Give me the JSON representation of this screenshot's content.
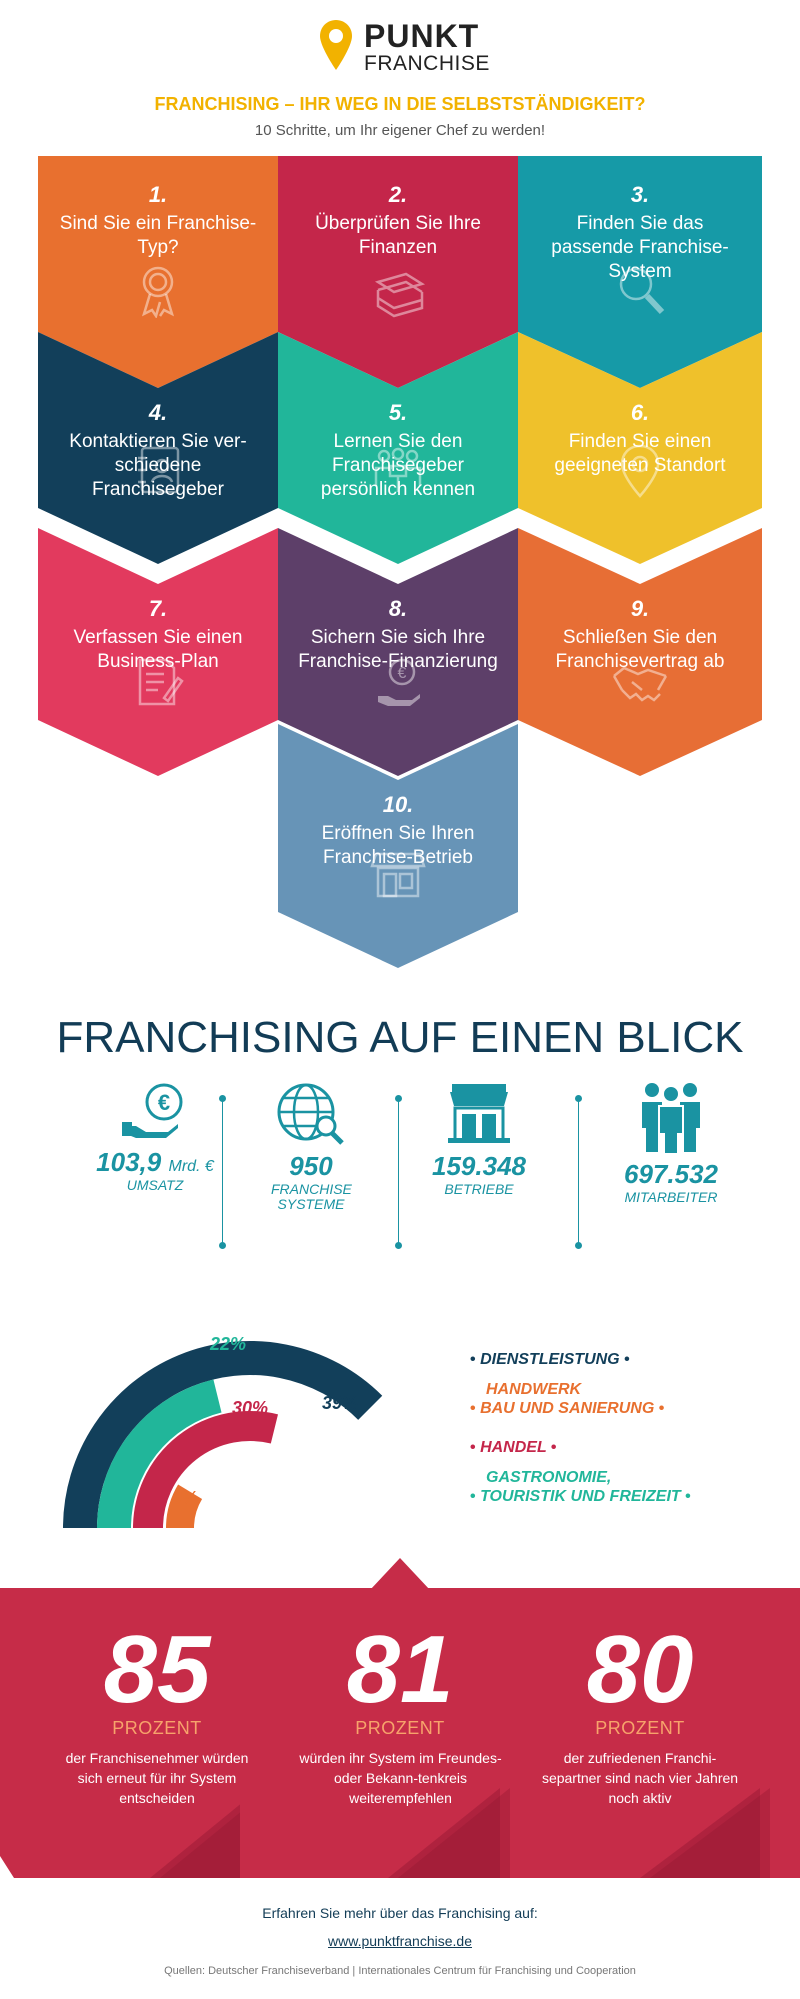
{
  "header": {
    "logo_word1": "PUNKT",
    "logo_word2": "FRANCHISE",
    "headline": "FRANCHISING – IHR WEG IN DIE SELBSTSTÄNDIGKEIT?",
    "subline": "10 Schritte, um Ihr eigener Chef zu werden!"
  },
  "steps": [
    {
      "num": "1.",
      "text": "Sind Sie ein Franchise-Typ?",
      "color": "#e8702f",
      "icon": "award-icon"
    },
    {
      "num": "2.",
      "text": "Überprüfen Sie Ihre Finanzen",
      "color": "#c4264a",
      "icon": "money-stack-icon"
    },
    {
      "num": "3.",
      "text": "Finden Sie das passende Franchise-System",
      "color": "#169aa7",
      "icon": "magnifier-icon"
    },
    {
      "num": "4.",
      "text": "Kontaktieren Sie ver-schiedene Franchisegeber",
      "color": "#123f5a",
      "icon": "address-book-icon"
    },
    {
      "num": "5.",
      "text": "Lernen Sie den Franchisegeber persönlich kennen",
      "color": "#21b69a",
      "icon": "meeting-icon"
    },
    {
      "num": "6.",
      "text": "Finden Sie einen geeigneten Standort",
      "color": "#efc12b",
      "icon": "location-pin-icon"
    },
    {
      "num": "7.",
      "text": "Verfassen Sie einen Business-Plan",
      "color": "#e23a5e",
      "icon": "document-pen-icon"
    },
    {
      "num": "8.",
      "text": "Sichern Sie sich Ihre Franchise-Finanzierung",
      "color": "#5d3f69",
      "icon": "euro-hand-icon"
    },
    {
      "num": "9.",
      "text": "Schließen Sie den Franchisevertrag ab",
      "color": "#e76e35",
      "icon": "handshake-icon"
    },
    {
      "num": "10.",
      "text": "Eröffnen Sie Ihren Franchise-Betrieb",
      "color": "#6794b7",
      "icon": "shop-icon"
    }
  ],
  "overview": {
    "title": "FRANCHISING AUF EINEN BLICK",
    "stats": [
      {
        "value": "103,9",
        "unit": "Mrd. €",
        "label": "UMSATZ",
        "icon": "euro-hand-icon"
      },
      {
        "value": "950",
        "unit": "",
        "label": "FRANCHISE SYSTEME",
        "icon": "globe-search-icon"
      },
      {
        "value": "159.348",
        "unit": "",
        "label": "BETRIEBE",
        "icon": "shop-icon"
      },
      {
        "value": "697.532",
        "unit": "",
        "label": "MITARBEITER",
        "icon": "people-icon"
      }
    ]
  },
  "chart_data": {
    "type": "pie",
    "categories": [
      "DIENSTLEISTUNG",
      "HANDWERK BAU UND SANIERUNG",
      "HANDEL",
      "GASTRONOMIE, TOURISTIK UND FREIZEIT"
    ],
    "values": [
      39,
      9,
      30,
      22
    ],
    "labels": [
      "39%",
      "9%",
      "30%",
      "22%"
    ],
    "colors": [
      "#123f5a",
      "#e8702f",
      "#c4264a",
      "#21b69a"
    ]
  },
  "legend": [
    {
      "line1": "DIENSTLEISTUNG",
      "line2": "",
      "color": "#123f5a"
    },
    {
      "line1": "HANDWERK",
      "line2": "BAU UND SANIERUNG",
      "color": "#e8702f"
    },
    {
      "line1": "HANDEL",
      "line2": "",
      "color": "#c4264a"
    },
    {
      "line1": "GASTRONOMIE,",
      "line2": "TOURISTIK UND FREIZEIT",
      "color": "#21b69a"
    }
  ],
  "facts": [
    {
      "number": "85",
      "unit": "PROZENT",
      "text": "der Franchisenehmer würden sich erneut für ihr System entscheiden"
    },
    {
      "number": "81",
      "unit": "PROZENT",
      "text": "würden ihr System im Freundes- oder Bekann-tenkreis weiterempfehlen"
    },
    {
      "number": "80",
      "unit": "PROZENT",
      "text": "der zufriedenen Franchi-separtner sind nach vier Jahren noch aktiv"
    }
  ],
  "footer": {
    "cta": "Erfahren Sie mehr über das Franchising auf:",
    "link": "www.punktfranchise.de",
    "sources": "Quellen: Deutscher Franchiseverband | Internationales Centrum für Franchising und Cooperation"
  }
}
